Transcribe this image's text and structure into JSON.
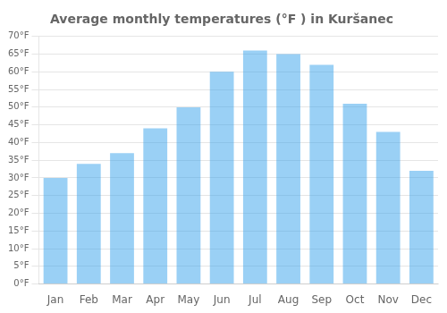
{
  "chart_data": {
    "type": "bar",
    "title": "Average monthly temperatures (°F ) in Kuršanec",
    "categories": [
      "Jan",
      "Feb",
      "Mar",
      "Apr",
      "May",
      "Jun",
      "Jul",
      "Aug",
      "Sep",
      "Oct",
      "Nov",
      "Dec"
    ],
    "values": [
      30,
      34,
      37,
      44,
      50,
      60,
      66,
      65,
      62,
      51,
      43,
      32
    ],
    "ylim": [
      0,
      70
    ],
    "yticks": [
      {
        "value": 0,
        "label": "0°F"
      },
      {
        "value": 5,
        "label": "5°F"
      },
      {
        "value": 10,
        "label": "10°F"
      },
      {
        "value": 15,
        "label": "15°F"
      },
      {
        "value": 20,
        "label": "20°F"
      },
      {
        "value": 25,
        "label": "25°F"
      },
      {
        "value": 30,
        "label": "30°F"
      },
      {
        "value": 35,
        "label": "35°F"
      },
      {
        "value": 40,
        "label": "40°F"
      },
      {
        "value": 45,
        "label": "45°F"
      },
      {
        "value": 50,
        "label": "50°F"
      },
      {
        "value": 55,
        "label": "55°F"
      },
      {
        "value": 60,
        "label": "60°F"
      },
      {
        "value": 65,
        "label": "65°F"
      },
      {
        "value": 70,
        "label": "70°F"
      }
    ],
    "grid": true
  }
}
